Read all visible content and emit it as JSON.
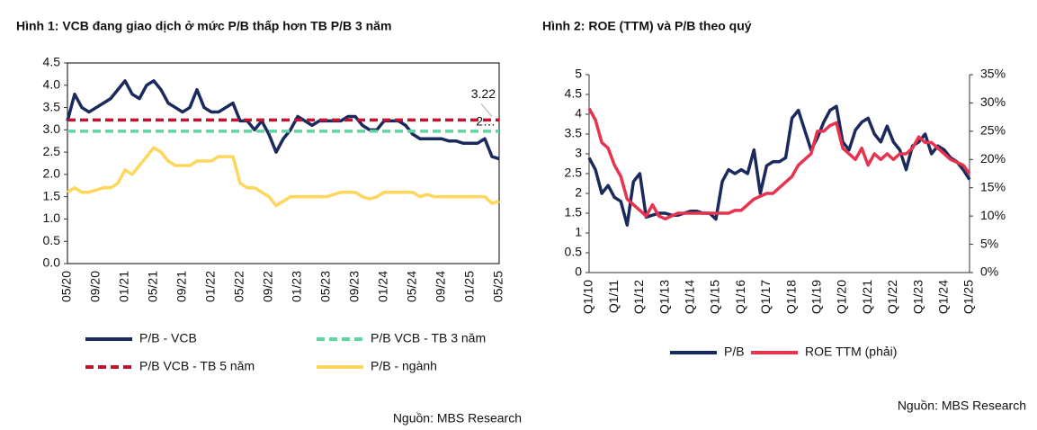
{
  "chart_data": [
    {
      "type": "line",
      "title": "Hình 1: VCB đang giao dịch ở mức P/B thấp hơn TB P/B 3 năm",
      "source": "Nguồn: MBS Research",
      "categories": [
        "05/20",
        null,
        null,
        null,
        "09/20",
        null,
        null,
        null,
        "01/21",
        null,
        null,
        null,
        "05/21",
        null,
        null,
        null,
        "09/21",
        null,
        null,
        null,
        "01/22",
        null,
        null,
        null,
        "05/22",
        null,
        null,
        null,
        "09/22",
        null,
        null,
        null,
        "01/23",
        null,
        null,
        null,
        "05/23",
        null,
        null,
        null,
        "09/23",
        null,
        null,
        null,
        "01/24",
        null,
        null,
        null,
        "05/24",
        null,
        null,
        null,
        "09/24",
        null,
        null,
        null,
        "01/25",
        null,
        null,
        null,
        "05/25"
      ],
      "ylim": [
        0,
        4.5
      ],
      "yticks": [
        {
          "value": 0,
          "label": "0.0"
        },
        0.5,
        {
          "value": 1,
          "label": "1.0"
        },
        1.5,
        {
          "value": 2,
          "label": "2.0"
        },
        2.5,
        {
          "value": 3,
          "label": "3.0"
        },
        3.5,
        {
          "value": 4,
          "label": "4.0"
        },
        4.5
      ],
      "series": [
        {
          "name": "P/B - VCB",
          "color": "#1b2a5c",
          "dash": false,
          "values": [
            3.2,
            3.8,
            3.5,
            3.4,
            3.5,
            3.6,
            3.7,
            3.9,
            4.1,
            3.8,
            3.7,
            4.0,
            4.1,
            3.9,
            3.6,
            3.5,
            3.4,
            3.5,
            3.9,
            3.5,
            3.4,
            3.4,
            3.5,
            3.6,
            3.2,
            3.2,
            3.0,
            3.2,
            2.9,
            2.5,
            2.8,
            3.0,
            3.3,
            3.2,
            3.1,
            3.2,
            3.2,
            3.2,
            3.2,
            3.3,
            3.3,
            3.1,
            3.0,
            3.0,
            3.2,
            3.2,
            3.2,
            3.1,
            2.9,
            2.8,
            2.8,
            2.8,
            2.8,
            2.75,
            2.75,
            2.7,
            2.7,
            2.7,
            2.8,
            2.4,
            2.35
          ]
        },
        {
          "name": "P/B VCB - TB 3 năm",
          "color": "#5ed6a3",
          "dash": true,
          "values": [
            2.97,
            2.97,
            2.97,
            2.97,
            2.97,
            2.97,
            2.97,
            2.97,
            2.97,
            2.97,
            2.97,
            2.97,
            2.97,
            2.97,
            2.97,
            2.97,
            2.97,
            2.97,
            2.97,
            2.97,
            2.97,
            2.97,
            2.97,
            2.97,
            2.97,
            2.97,
            2.97,
            2.97,
            2.97,
            2.97,
            2.97,
            2.97,
            2.97,
            2.97,
            2.97,
            2.97,
            2.97,
            2.97,
            2.97,
            2.97,
            2.97,
            2.97,
            2.97,
            2.97,
            2.97,
            2.97,
            2.97,
            2.97,
            2.97,
            2.97,
            2.97,
            2.97,
            2.97,
            2.97,
            2.97,
            2.97,
            2.97,
            2.97,
            2.97,
            2.97,
            2.97
          ],
          "value_labels": [
            null,
            null,
            null,
            null,
            null,
            null,
            null,
            null,
            null,
            null,
            null,
            null,
            null,
            null,
            null,
            null,
            null,
            null,
            null,
            null,
            null,
            null,
            null,
            null,
            null,
            null,
            null,
            null,
            null,
            null,
            null,
            null,
            null,
            null,
            null,
            null,
            null,
            null,
            null,
            null,
            null,
            null,
            null,
            null,
            null,
            null,
            null,
            null,
            null,
            null,
            null,
            null,
            null,
            null,
            null,
            null,
            null,
            null,
            null,
            null,
            "2…"
          ]
        },
        {
          "name": "P/B VCB - TB 5 năm",
          "color": "#c8102e",
          "dash": true,
          "values": [
            3.22,
            3.22,
            3.22,
            3.22,
            3.22,
            3.22,
            3.22,
            3.22,
            3.22,
            3.22,
            3.22,
            3.22,
            3.22,
            3.22,
            3.22,
            3.22,
            3.22,
            3.22,
            3.22,
            3.22,
            3.22,
            3.22,
            3.22,
            3.22,
            3.22,
            3.22,
            3.22,
            3.22,
            3.22,
            3.22,
            3.22,
            3.22,
            3.22,
            3.22,
            3.22,
            3.22,
            3.22,
            3.22,
            3.22,
            3.22,
            3.22,
            3.22,
            3.22,
            3.22,
            3.22,
            3.22,
            3.22,
            3.22,
            3.22,
            3.22,
            3.22,
            3.22,
            3.22,
            3.22,
            3.22,
            3.22,
            3.22,
            3.22,
            3.22,
            3.22,
            3.22
          ],
          "value_labels": [
            null,
            null,
            null,
            null,
            null,
            null,
            null,
            null,
            null,
            null,
            null,
            null,
            null,
            null,
            null,
            null,
            null,
            null,
            null,
            null,
            null,
            null,
            null,
            null,
            null,
            null,
            null,
            null,
            null,
            null,
            null,
            null,
            null,
            null,
            null,
            null,
            null,
            null,
            null,
            null,
            null,
            null,
            null,
            null,
            null,
            null,
            null,
            null,
            null,
            null,
            null,
            null,
            null,
            null,
            null,
            null,
            null,
            null,
            null,
            null,
            "3.22"
          ]
        },
        {
          "name": "P/B - ngành",
          "color": "#ffd65c",
          "dash": false,
          "values": [
            1.6,
            1.7,
            1.6,
            1.6,
            1.65,
            1.7,
            1.7,
            1.8,
            2.1,
            2.0,
            2.2,
            2.4,
            2.6,
            2.5,
            2.3,
            2.2,
            2.2,
            2.2,
            2.3,
            2.3,
            2.3,
            2.4,
            2.4,
            2.4,
            1.8,
            1.7,
            1.7,
            1.6,
            1.5,
            1.3,
            1.4,
            1.5,
            1.5,
            1.5,
            1.5,
            1.5,
            1.5,
            1.55,
            1.6,
            1.6,
            1.6,
            1.5,
            1.45,
            1.5,
            1.6,
            1.6,
            1.6,
            1.6,
            1.6,
            1.5,
            1.55,
            1.5,
            1.5,
            1.5,
            1.5,
            1.5,
            1.5,
            1.5,
            1.5,
            1.35,
            1.4
          ]
        }
      ]
    },
    {
      "type": "line",
      "title": "Hình 2: ROE (TTM) và P/B theo quý",
      "source": "Nguồn: MBS Research",
      "categories": [
        "Q1/10",
        null,
        null,
        null,
        "Q1/11",
        null,
        null,
        null,
        "Q1/12",
        null,
        null,
        null,
        "Q1/13",
        null,
        null,
        null,
        "Q1/14",
        null,
        null,
        null,
        "Q1/15",
        null,
        null,
        null,
        "Q1/16",
        null,
        null,
        null,
        "Q1/17",
        null,
        null,
        null,
        "Q1/18",
        null,
        null,
        null,
        "Q1/19",
        null,
        null,
        null,
        "Q1/20",
        null,
        null,
        null,
        "Q1/21",
        null,
        null,
        null,
        "Q1/22",
        null,
        null,
        null,
        "Q1/23",
        null,
        null,
        null,
        "Q1/24",
        null,
        null,
        null,
        "Q1/25"
      ],
      "ylim": [
        0,
        5
      ],
      "yticks": [
        0,
        0.5,
        1,
        1.5,
        2,
        2.5,
        3,
        3.5,
        4,
        4.5,
        5
      ],
      "y2lim": [
        0,
        35
      ],
      "y2ticks": [
        {
          "value": 0,
          "label": "0%"
        },
        {
          "value": 5,
          "label": "5%"
        },
        {
          "value": 10,
          "label": "10%"
        },
        {
          "value": 15,
          "label": "15%"
        },
        {
          "value": 20,
          "label": "20%"
        },
        {
          "value": 25,
          "label": "25%"
        },
        {
          "value": 30,
          "label": "30%"
        },
        {
          "value": 35,
          "label": "35%"
        }
      ],
      "series": [
        {
          "name": "P/B",
          "color": "#1b2a5c",
          "dash": false,
          "values": [
            2.9,
            2.6,
            2.0,
            2.2,
            1.9,
            1.8,
            1.2,
            2.3,
            2.5,
            1.4,
            1.45,
            1.5,
            1.5,
            1.45,
            1.45,
            1.5,
            1.55,
            1.55,
            1.5,
            1.5,
            1.35,
            2.3,
            2.6,
            2.5,
            2.6,
            2.5,
            3.1,
            2.0,
            2.7,
            2.8,
            2.8,
            2.9,
            3.9,
            4.1,
            3.6,
            3.1,
            3.4,
            3.8,
            4.1,
            4.2,
            3.3,
            3.1,
            3.6,
            3.8,
            3.9,
            3.5,
            3.3,
            3.7,
            3.3,
            3.1,
            2.6,
            3.2,
            3.3,
            3.5,
            3.0,
            3.2,
            3.1,
            2.9,
            2.8,
            2.6,
            2.35
          ]
        },
        {
          "name": "ROE TTM (phải)",
          "color": "#e8334f",
          "dash": false,
          "axis": "y2",
          "values": [
            29,
            27,
            23,
            22,
            19,
            17,
            13,
            12,
            11,
            10,
            12,
            10,
            9.5,
            10,
            10.5,
            10.5,
            10.5,
            10.5,
            10.5,
            10.5,
            10.5,
            10.5,
            10.5,
            11,
            11,
            12,
            13,
            13.5,
            14,
            14,
            15,
            16,
            17,
            19,
            20,
            21,
            25,
            25,
            26,
            26.5,
            22,
            21,
            20,
            22,
            19,
            21,
            20,
            21,
            20,
            21,
            21,
            22,
            24,
            23,
            23,
            22,
            21,
            20,
            19.5,
            19,
            17.5
          ]
        }
      ]
    }
  ]
}
